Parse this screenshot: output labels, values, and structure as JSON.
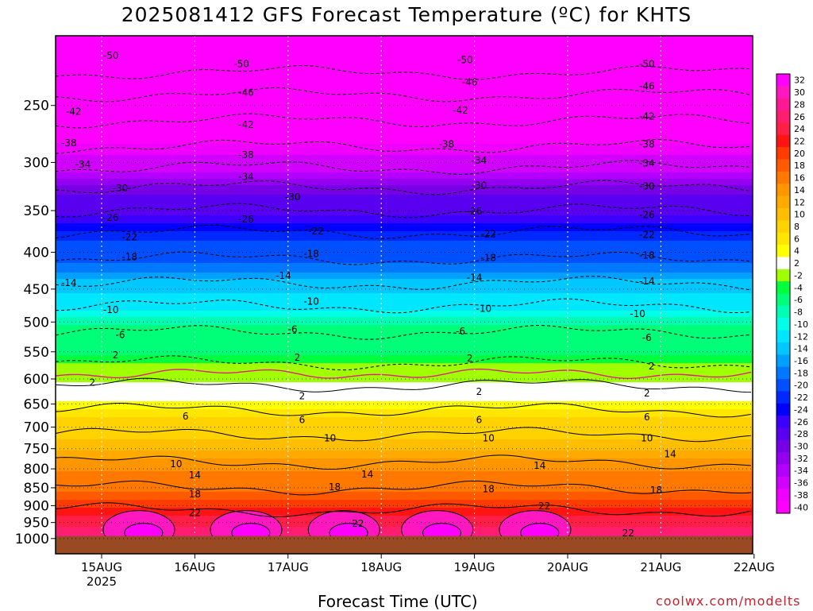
{
  "title": "2025081412 GFS Forecast Temperature (ºC) for KHTS",
  "xaxis_label": "Forecast Time (UTC)",
  "credit": "coolwx.com/modelts",
  "chart_data": {
    "type": "heatmap",
    "title": "2025081412 GFS Forecast Temperature (ºC) for KHTS",
    "xlabel": "Forecast Time (UTC)",
    "ylabel": "",
    "x_ticks": [
      "15AUG",
      "16AUG",
      "17AUG",
      "18AUG",
      "19AUG",
      "20AUG",
      "21AUG",
      "22AUG"
    ],
    "x_tick_sublabel": "2025",
    "x_range": [
      "14AUG 12Z",
      "22AUG 00Z"
    ],
    "y_ticks": [
      250,
      300,
      350,
      400,
      450,
      500,
      550,
      600,
      650,
      700,
      750,
      800,
      850,
      900,
      950,
      1000
    ],
    "y_range": [
      200,
      1050
    ],
    "y_scale": "log",
    "y_inverted": true,
    "ground_level_hPa": 992,
    "grid": "dotted",
    "colorbar_levels": [
      32,
      30,
      28,
      26,
      24,
      22,
      20,
      18,
      16,
      14,
      12,
      10,
      8,
      6,
      4,
      2,
      -2,
      -4,
      -6,
      -8,
      -10,
      -12,
      -14,
      -16,
      -18,
      -20,
      -22,
      -24,
      -26,
      -28,
      -30,
      -32,
      -34,
      -36,
      -38,
      -40
    ],
    "colorbar_colors": [
      "#ff00ff",
      "#ff18c0",
      "#ff1896",
      "#ff1e6e",
      "#ff1e46",
      "#ff1414",
      "#ff3c00",
      "#ff5a00",
      "#ff7800",
      "#ff9600",
      "#ffaa00",
      "#ffbe00",
      "#ffd200",
      "#ffe600",
      "#ffff00",
      "#ffffff",
      "#a0ff00",
      "#00ff3c",
      "#00ff78",
      "#00ffb4",
      "#00ffe6",
      "#00e6ff",
      "#00c8ff",
      "#00a0ff",
      "#0078ff",
      "#0050ff",
      "#0028ff",
      "#0000ff",
      "#3c00ff",
      "#5a00f0",
      "#7800e6",
      "#9600f0",
      "#b400ff",
      "#d200ff",
      "#f000ff",
      "#ff00ff"
    ],
    "contour_levels": [
      -50,
      -46,
      -42,
      -38,
      -34,
      -30,
      -26,
      -22,
      -18,
      -14,
      -10,
      -6,
      -2,
      2,
      6,
      10,
      14,
      18,
      22
    ],
    "temperature_profile": [
      {
        "pressure": 200,
        "temperature": -54
      },
      {
        "pressure": 225,
        "temperature": -50
      },
      {
        "pressure": 250,
        "temperature": -44
      },
      {
        "pressure": 275,
        "temperature": -40
      },
      {
        "pressure": 300,
        "temperature": -35
      },
      {
        "pressure": 325,
        "temperature": -30
      },
      {
        "pressure": 350,
        "temperature": -26
      },
      {
        "pressure": 375,
        "temperature": -22
      },
      {
        "pressure": 400,
        "temperature": -19
      },
      {
        "pressure": 450,
        "temperature": -13
      },
      {
        "pressure": 500,
        "temperature": -7
      },
      {
        "pressure": 550,
        "temperature": -4
      },
      {
        "pressure": 600,
        "temperature": 1
      },
      {
        "pressure": 650,
        "temperature": 5
      },
      {
        "pressure": 700,
        "temperature": 9
      },
      {
        "pressure": 750,
        "temperature": 12
      },
      {
        "pressure": 800,
        "temperature": 15
      },
      {
        "pressure": 850,
        "temperature": 18
      },
      {
        "pressure": 900,
        "temperature": 21
      },
      {
        "pressure": 950,
        "temperature": 25
      },
      {
        "pressure": 1000,
        "temperature": 30
      }
    ],
    "contour_labels": [
      {
        "value": "-50",
        "day": 0.1,
        "pressure": 213
      },
      {
        "value": "-50",
        "day": 1.5,
        "pressure": 219
      },
      {
        "value": "-50",
        "day": 3.9,
        "pressure": 216
      },
      {
        "value": "-50",
        "day": 5.85,
        "pressure": 219
      },
      {
        "value": "-46",
        "day": 1.55,
        "pressure": 240
      },
      {
        "value": "-46",
        "day": 3.95,
        "pressure": 232
      },
      {
        "value": "-46",
        "day": 5.85,
        "pressure": 235
      },
      {
        "value": "-42",
        "day": -0.3,
        "pressure": 255
      },
      {
        "value": "-42",
        "day": 1.55,
        "pressure": 266
      },
      {
        "value": "-42",
        "day": 3.85,
        "pressure": 254
      },
      {
        "value": "-42",
        "day": 5.85,
        "pressure": 259
      },
      {
        "value": "-38",
        "day": -0.35,
        "pressure": 282
      },
      {
        "value": "-38",
        "day": 1.55,
        "pressure": 293
      },
      {
        "value": "-38",
        "day": 3.7,
        "pressure": 283
      },
      {
        "value": "-38",
        "day": 5.85,
        "pressure": 283
      },
      {
        "value": "-34",
        "day": -0.2,
        "pressure": 302
      },
      {
        "value": "-34",
        "day": 1.55,
        "pressure": 314
      },
      {
        "value": "-34",
        "day": 4.05,
        "pressure": 298
      },
      {
        "value": "-34",
        "day": 5.85,
        "pressure": 301
      },
      {
        "value": "-30",
        "day": 0.2,
        "pressure": 326
      },
      {
        "value": "-30",
        "day": 2.05,
        "pressure": 335
      },
      {
        "value": "-30",
        "day": 4.05,
        "pressure": 323
      },
      {
        "value": "-30",
        "day": 5.85,
        "pressure": 324
      },
      {
        "value": "-26",
        "day": 0.1,
        "pressure": 358
      },
      {
        "value": "-26",
        "day": 1.55,
        "pressure": 360
      },
      {
        "value": "-26",
        "day": 4.0,
        "pressure": 351
      },
      {
        "value": "-26",
        "day": 5.85,
        "pressure": 355
      },
      {
        "value": "-22",
        "day": 0.3,
        "pressure": 381
      },
      {
        "value": "-22",
        "day": 2.3,
        "pressure": 374
      },
      {
        "value": "-22",
        "day": 4.15,
        "pressure": 377
      },
      {
        "value": "-22",
        "day": 5.85,
        "pressure": 378
      },
      {
        "value": "-18",
        "day": 0.3,
        "pressure": 406
      },
      {
        "value": "-18",
        "day": 2.25,
        "pressure": 402
      },
      {
        "value": "-18",
        "day": 4.15,
        "pressure": 407
      },
      {
        "value": "-18",
        "day": 5.85,
        "pressure": 404
      },
      {
        "value": "-14",
        "day": -0.35,
        "pressure": 441
      },
      {
        "value": "-14",
        "day": 1.95,
        "pressure": 431
      },
      {
        "value": "-14",
        "day": 4.0,
        "pressure": 434
      },
      {
        "value": "-14",
        "day": 5.85,
        "pressure": 439
      },
      {
        "value": "-10",
        "day": 0.1,
        "pressure": 481
      },
      {
        "value": "-10",
        "day": 2.25,
        "pressure": 468
      },
      {
        "value": "-10",
        "day": 4.1,
        "pressure": 479
      },
      {
        "value": "-10",
        "day": 5.75,
        "pressure": 487
      },
      {
        "value": "-6",
        "day": 0.2,
        "pressure": 521
      },
      {
        "value": "-6",
        "day": 2.05,
        "pressure": 512
      },
      {
        "value": "-6",
        "day": 3.85,
        "pressure": 515
      },
      {
        "value": "-6",
        "day": 5.85,
        "pressure": 526
      },
      {
        "value": "2",
        "day": 0.15,
        "pressure": 556
      },
      {
        "value": "2",
        "day": 2.1,
        "pressure": 560
      },
      {
        "value": "2",
        "day": 3.95,
        "pressure": 562
      },
      {
        "value": "2",
        "day": 5.9,
        "pressure": 576
      },
      {
        "value": "2",
        "day": -0.1,
        "pressure": 607
      },
      {
        "value": "2",
        "day": 2.15,
        "pressure": 634
      },
      {
        "value": "2",
        "day": 4.05,
        "pressure": 625
      },
      {
        "value": "2",
        "day": 5.85,
        "pressure": 628
      },
      {
        "value": "6",
        "day": 0.9,
        "pressure": 676
      },
      {
        "value": "6",
        "day": 2.15,
        "pressure": 684
      },
      {
        "value": "6",
        "day": 4.05,
        "pressure": 684
      },
      {
        "value": "6",
        "day": 5.85,
        "pressure": 678
      },
      {
        "value": "10",
        "day": 0.8,
        "pressure": 788
      },
      {
        "value": "10",
        "day": 2.45,
        "pressure": 725
      },
      {
        "value": "10",
        "day": 4.15,
        "pressure": 725
      },
      {
        "value": "10",
        "day": 5.85,
        "pressure": 725
      },
      {
        "value": "14",
        "day": 1.0,
        "pressure": 816
      },
      {
        "value": "14",
        "day": 2.85,
        "pressure": 814
      },
      {
        "value": "14",
        "day": 4.7,
        "pressure": 792
      },
      {
        "value": "14",
        "day": 6.1,
        "pressure": 763
      },
      {
        "value": "18",
        "day": 1.0,
        "pressure": 868
      },
      {
        "value": "18",
        "day": 2.5,
        "pressure": 848
      },
      {
        "value": "18",
        "day": 4.15,
        "pressure": 853
      },
      {
        "value": "18",
        "day": 5.95,
        "pressure": 857
      },
      {
        "value": "22",
        "day": 1.0,
        "pressure": 921
      },
      {
        "value": "22",
        "day": 2.75,
        "pressure": 953
      },
      {
        "value": "22",
        "day": 4.75,
        "pressure": 901
      },
      {
        "value": "22",
        "day": 5.65,
        "pressure": 983
      }
    ]
  }
}
